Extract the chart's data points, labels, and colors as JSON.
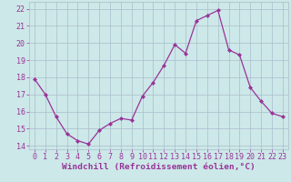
{
  "x": [
    0,
    1,
    2,
    3,
    4,
    5,
    6,
    7,
    8,
    9,
    10,
    11,
    12,
    13,
    14,
    15,
    16,
    17,
    18,
    19,
    20,
    21,
    22,
    23
  ],
  "y": [
    17.9,
    17.0,
    15.7,
    14.7,
    14.3,
    14.1,
    14.9,
    15.3,
    15.6,
    15.5,
    16.9,
    17.7,
    18.7,
    19.9,
    19.4,
    21.3,
    21.6,
    21.9,
    19.6,
    19.3,
    17.4,
    16.6,
    15.9,
    15.7
  ],
  "line_color": "#993399",
  "marker": "D",
  "marker_size": 2,
  "bg_color": "#cce8e8",
  "grid_color": "#aabccc",
  "tick_color": "#993399",
  "label_color": "#993399",
  "xlabel": "Windchill (Refroidissement éolien,°C)",
  "ylim": [
    13.8,
    22.4
  ],
  "xlim": [
    -0.5,
    23.5
  ],
  "yticks": [
    14,
    15,
    16,
    17,
    18,
    19,
    20,
    21,
    22
  ],
  "xticks": [
    0,
    1,
    2,
    3,
    4,
    5,
    6,
    7,
    8,
    9,
    10,
    11,
    12,
    13,
    14,
    15,
    16,
    17,
    18,
    19,
    20,
    21,
    22,
    23
  ],
  "xlabel_fontsize": 6.8,
  "tick_fontsize": 6.0
}
